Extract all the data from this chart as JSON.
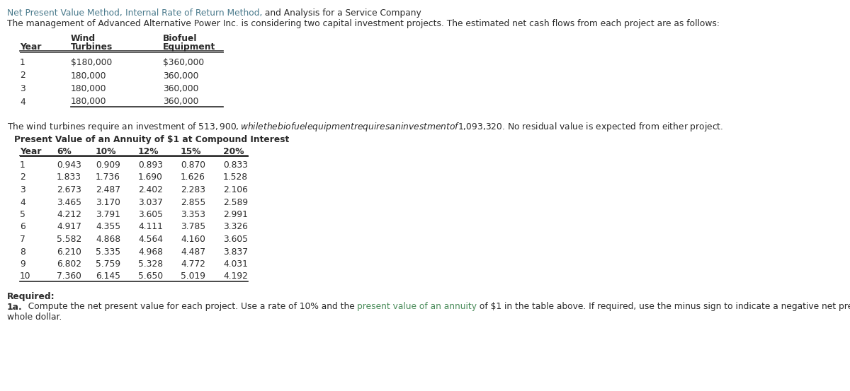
{
  "title_part1": "Net Present Value Method, ",
  "title_part2": "Internal Rate of Return Method,",
  "title_part3": " and Analysis for a Service Company",
  "intro_text": "The management of Advanced Alternative Power Inc. is considering two capital investment projects. The estimated net cash flows from each project are as follows:",
  "table1_col_headers_line1": [
    "",
    "Wind",
    "Biofuel"
  ],
  "table1_col_headers_line2": [
    "Year",
    "Turbines",
    "Equipment"
  ],
  "table1_data": [
    [
      "1",
      "$180,000",
      "$360,000"
    ],
    [
      "2",
      "180,000",
      "360,000"
    ],
    [
      "3",
      "180,000",
      "360,000"
    ],
    [
      "4",
      "180,000",
      "360,000"
    ]
  ],
  "mid_text": "The wind turbines require an investment of $513,900, while the biofuel equipment requires an investment of $1,093,320. No residual value is expected from either project.",
  "table2_title": "Present Value of an Annuity of $1 at Compound Interest",
  "table2_headers": [
    "Year",
    "6%",
    "10%",
    "12%",
    "15%",
    "20%"
  ],
  "table2_data": [
    [
      "1",
      "0.943",
      "0.909",
      "0.893",
      "0.870",
      "0.833"
    ],
    [
      "2",
      "1.833",
      "1.736",
      "1.690",
      "1.626",
      "1.528"
    ],
    [
      "3",
      "2.673",
      "2.487",
      "2.402",
      "2.283",
      "2.106"
    ],
    [
      "4",
      "3.465",
      "3.170",
      "3.037",
      "2.855",
      "2.589"
    ],
    [
      "5",
      "4.212",
      "3.791",
      "3.605",
      "3.353",
      "2.991"
    ],
    [
      "6",
      "4.917",
      "4.355",
      "4.111",
      "3.785",
      "3.326"
    ],
    [
      "7",
      "5.582",
      "4.868",
      "4.564",
      "4.160",
      "3.605"
    ],
    [
      "8",
      "6.210",
      "5.335",
      "4.968",
      "4.487",
      "3.837"
    ],
    [
      "9",
      "6.802",
      "5.759",
      "5.328",
      "4.772",
      "4.031"
    ],
    [
      "10",
      "7.360",
      "6.145",
      "5.650",
      "5.019",
      "4.192"
    ]
  ],
  "required_text": "Required:",
  "title_color": "#4a7a8c",
  "link_color": "#4a8c5a",
  "text_color": "#2a2a2a",
  "bg_color": "#ffffff",
  "font_size": 8.8
}
